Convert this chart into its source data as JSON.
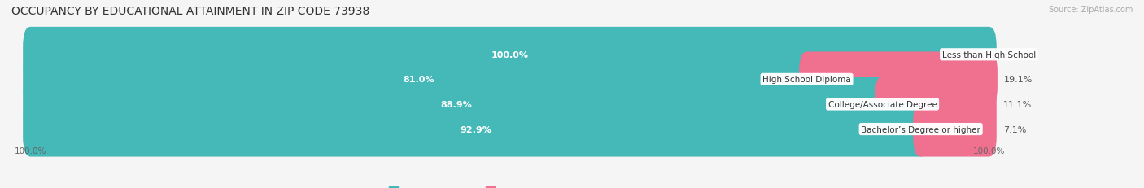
{
  "title": "OCCUPANCY BY EDUCATIONAL ATTAINMENT IN ZIP CODE 73938",
  "source": "Source: ZipAtlas.com",
  "categories": [
    "Less than High School",
    "High School Diploma",
    "College/Associate Degree",
    "Bachelor’s Degree or higher"
  ],
  "owner_values": [
    100.0,
    81.0,
    88.9,
    92.9
  ],
  "renter_values": [
    0.0,
    19.1,
    11.1,
    7.1
  ],
  "owner_color": "#45b8b8",
  "renter_color": "#f07090",
  "bg_bar_color": "#e0e0e0",
  "fig_bg_color": "#f5f5f5",
  "bar_height": 0.62,
  "bar_gap": 0.38,
  "title_fontsize": 10,
  "label_fontsize": 8,
  "source_fontsize": 7,
  "legend_fontsize": 8,
  "owner_text_color": "white",
  "renter_text_color": "#555555",
  "cat_text_color": "#333333",
  "x_left_label": "100.0%",
  "x_right_label": "100.0%"
}
